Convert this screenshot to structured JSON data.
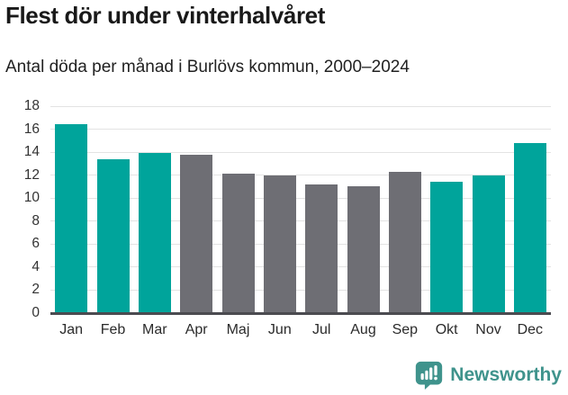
{
  "header": {
    "title": "Flest dör under vinterhalvåret",
    "subtitle": "Antal döda per månad i Burlövs kommun, 2000–2024"
  },
  "chart_data": {
    "type": "bar",
    "title": "Flest dör under vinterhalvåret",
    "subtitle": "Antal döda per månad i Burlövs kommun, 2000–2024",
    "categories": [
      "Jan",
      "Feb",
      "Mar",
      "Apr",
      "Maj",
      "Jun",
      "Jul",
      "Aug",
      "Sep",
      "Okt",
      "Nov",
      "Dec"
    ],
    "values": [
      16.4,
      13.4,
      13.9,
      13.8,
      12.1,
      12.0,
      11.2,
      11.0,
      12.3,
      11.4,
      12.0,
      14.8
    ],
    "bar_colors": [
      "#00A49B",
      "#00A49B",
      "#00A49B",
      "#6E6E74",
      "#6E6E74",
      "#6E6E74",
      "#6E6E74",
      "#6E6E74",
      "#6E6E74",
      "#00A49B",
      "#00A49B",
      "#00A49B"
    ],
    "xlabel": "",
    "ylabel": "",
    "ylim": [
      0,
      18
    ],
    "yticks": [
      0,
      2,
      4,
      6,
      8,
      10,
      12,
      14,
      16,
      18
    ],
    "grid": true,
    "legend": false,
    "colors": {
      "highlight": "#00A49B",
      "neutral": "#6E6E74",
      "gridline": "#E3E3E3",
      "axis_line": "#4B4B50",
      "tick_label": "#333333"
    }
  },
  "footer": {
    "brand": "Newsworthy",
    "brand_color": "#3F938C",
    "logo_icon": "bar-chart-speech-bubble-icon"
  }
}
